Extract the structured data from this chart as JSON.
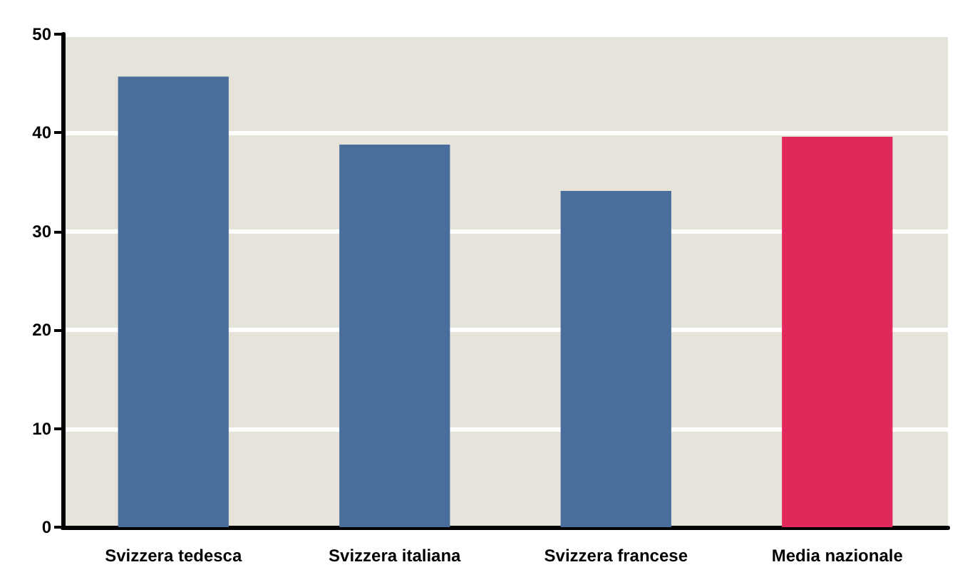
{
  "chart_data": {
    "type": "bar",
    "categories": [
      "Svizzera tedesca",
      "Svizzera italiana",
      "Svizzera francese",
      "Media nazionale"
    ],
    "values": [
      45.7,
      38.8,
      34.1,
      39.6
    ],
    "colors": [
      "#4a6e9c",
      "#4a6e9c",
      "#4a6e9c",
      "#e0285a"
    ],
    "ylim": [
      0,
      50
    ],
    "yticks": [
      0,
      10,
      20,
      30,
      40,
      50
    ],
    "grid": "y"
  }
}
